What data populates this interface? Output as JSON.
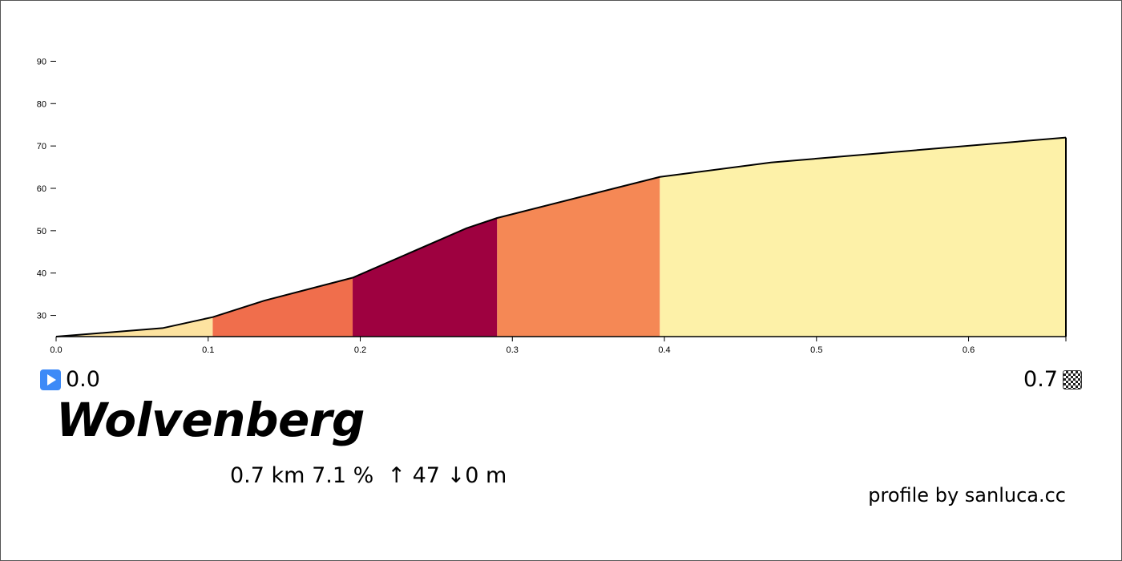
{
  "chart_data": {
    "type": "area",
    "xlabel": "",
    "ylabel": "",
    "xlim": [
      0,
      0.664
    ],
    "ylim": [
      25,
      95
    ],
    "x_ticks": [
      "0.0",
      "0.1",
      "0.2",
      "0.3",
      "0.4",
      "0.5",
      "0.6"
    ],
    "x_tick_values": [
      0.0,
      0.1,
      0.2,
      0.3,
      0.4,
      0.5,
      0.6
    ],
    "y_ticks": [
      "30",
      "40",
      "50",
      "60",
      "70",
      "80",
      "90"
    ],
    "y_tick_values": [
      30,
      40,
      50,
      60,
      70,
      80,
      90
    ],
    "profile": [
      {
        "x": 0.0,
        "y": 25.0
      },
      {
        "x": 0.07,
        "y": 27.0
      },
      {
        "x": 0.103,
        "y": 29.6
      },
      {
        "x": 0.137,
        "y": 33.5
      },
      {
        "x": 0.195,
        "y": 38.9
      },
      {
        "x": 0.27,
        "y": 50.6
      },
      {
        "x": 0.29,
        "y": 53.0
      },
      {
        "x": 0.397,
        "y": 62.7
      },
      {
        "x": 0.47,
        "y": 66.1
      },
      {
        "x": 0.664,
        "y": 72.0
      }
    ],
    "segments": [
      {
        "x_start": 0.0,
        "x_end": 0.103,
        "color": "#fde3a0"
      },
      {
        "x_start": 0.103,
        "x_end": 0.195,
        "color": "#f06e4c"
      },
      {
        "x_start": 0.195,
        "x_end": 0.29,
        "color": "#9e0140"
      },
      {
        "x_start": 0.29,
        "x_end": 0.397,
        "color": "#f58855"
      },
      {
        "x_start": 0.397,
        "x_end": 0.664,
        "color": "#fdf1a8"
      }
    ]
  },
  "start_km": "0.0",
  "end_km": "0.7",
  "climb_name": "Wolvenberg",
  "stats": {
    "distance": "0.7 km",
    "gradient": "7.1 %",
    "ascent": "↑ 47",
    "descent": "↓0 m"
  },
  "credit": "profile by sanluca.cc",
  "icons": {
    "start": "play-icon",
    "finish": "checkered-flag-icon"
  }
}
